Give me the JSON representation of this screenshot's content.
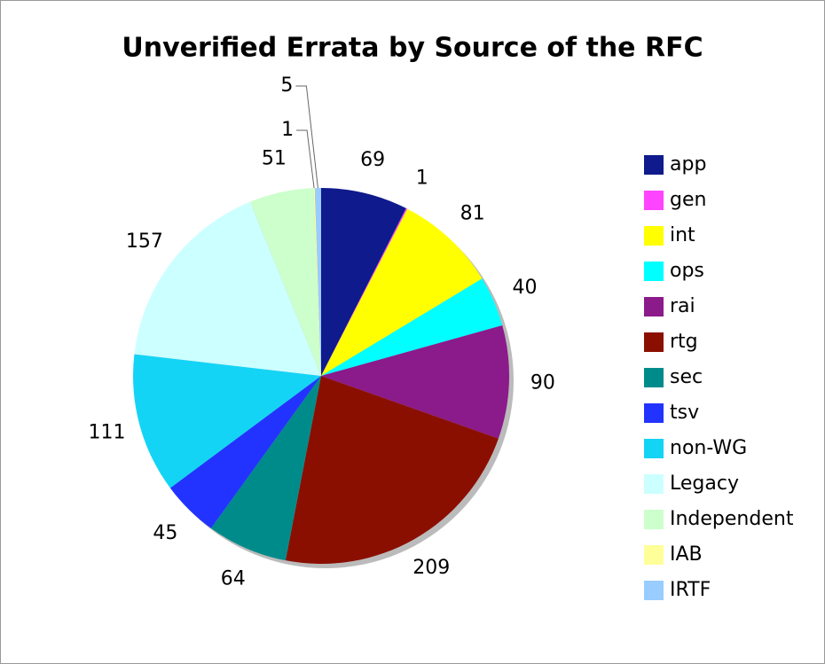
{
  "chart_data": {
    "type": "pie",
    "title": "Unverified Errata by Source of the RFC",
    "categories": [
      "app",
      "gen",
      "int",
      "ops",
      "rai",
      "rtg",
      "sec",
      "tsv",
      "non-WG",
      "Legacy",
      "Independent",
      "IAB",
      "IRTF"
    ],
    "values": [
      69,
      1,
      81,
      40,
      90,
      209,
      64,
      45,
      111,
      157,
      51,
      1,
      5
    ],
    "colors": [
      "#0f1a8c",
      "#ff44ff",
      "#ffff00",
      "#00ffff",
      "#8b1a8b",
      "#8b0f00",
      "#008b8b",
      "#2233ff",
      "#14d4f6",
      "#ccffff",
      "#ccffcc",
      "#ffff99",
      "#99ccff"
    ],
    "legend": "right"
  }
}
